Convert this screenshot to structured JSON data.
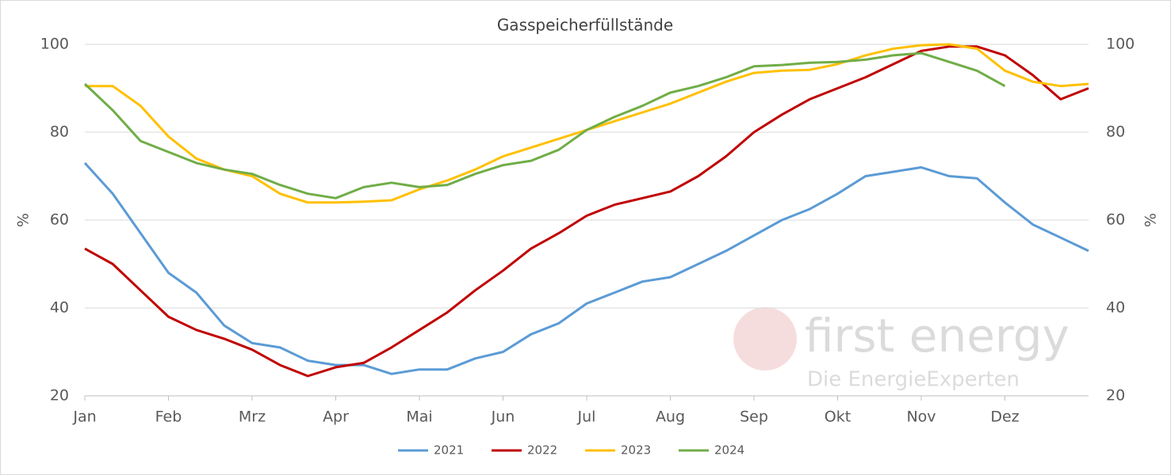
{
  "chart_data": {
    "type": "line",
    "title": "Gasspeicherfüllstände",
    "ylabel": "%",
    "y2label": "%",
    "categories": [
      "Jan",
      null,
      null,
      "Feb",
      null,
      null,
      "Mrz",
      null,
      null,
      "Apr",
      null,
      null,
      "Mai",
      null,
      null,
      "Jun",
      null,
      null,
      "Jul",
      null,
      null,
      "Aug",
      null,
      null,
      "Sep",
      null,
      null,
      "Okt",
      null,
      null,
      "Nov",
      null,
      null,
      "Dez",
      null,
      null,
      null
    ],
    "series": [
      {
        "name": "2021",
        "color": "#5b9bd5",
        "values": [
          73,
          66,
          57,
          48,
          43.5,
          36,
          32,
          31,
          28,
          27,
          27,
          25,
          26,
          26,
          28.5,
          30,
          34,
          36.5,
          41,
          43.5,
          46,
          47,
          50,
          53,
          56.5,
          60,
          62.5,
          66,
          70,
          71,
          72,
          70,
          69.5,
          64,
          59,
          56,
          53
        ]
      },
      {
        "name": "2022",
        "color": "#c00000",
        "values": [
          53.5,
          50,
          44,
          38,
          35,
          33,
          30.5,
          27,
          24.5,
          26.5,
          27.5,
          31,
          35,
          39,
          44,
          48.5,
          53.5,
          57,
          61,
          63.5,
          65,
          66.5,
          70,
          74.5,
          80,
          84,
          87.5,
          90,
          92.5,
          95.5,
          98.5,
          99.5,
          99.5,
          97.5,
          93,
          87.5,
          90
        ]
      },
      {
        "name": "2023",
        "color": "#ffc000",
        "values": [
          90.5,
          90.5,
          86,
          79,
          74,
          71.5,
          70,
          66,
          64,
          64,
          64.2,
          64.5,
          67,
          69,
          71.5,
          74.5,
          76.5,
          78.5,
          80.5,
          82.5,
          84.5,
          86.5,
          89,
          91.5,
          93.5,
          94,
          94.2,
          95.5,
          97.5,
          99,
          99.8,
          100,
          99,
          94,
          91.5,
          90.5,
          91
        ]
      },
      {
        "name": "2024",
        "color": "#70ad47",
        "values": [
          91,
          85,
          78,
          75.5,
          73,
          71.5,
          70.5,
          68,
          66,
          65,
          67.5,
          68.5,
          67.5,
          68,
          70.5,
          72.5,
          73.5,
          76,
          80.5,
          83.5,
          86,
          89,
          90.5,
          92.5,
          95,
          95.3,
          95.8,
          96,
          96.5,
          97.5,
          98,
          96,
          94,
          90.5,
          null,
          null,
          null
        ]
      }
    ],
    "ylim": [
      20,
      100
    ],
    "yticks": [
      20,
      40,
      60,
      80,
      100
    ],
    "y2lim": [
      20,
      100
    ],
    "y2ticks": [
      20,
      40,
      60,
      80,
      100
    ],
    "grid": true,
    "legend": "bottom",
    "watermark": {
      "brand": "first energy",
      "tagline": "Die EnergieExperten"
    }
  }
}
